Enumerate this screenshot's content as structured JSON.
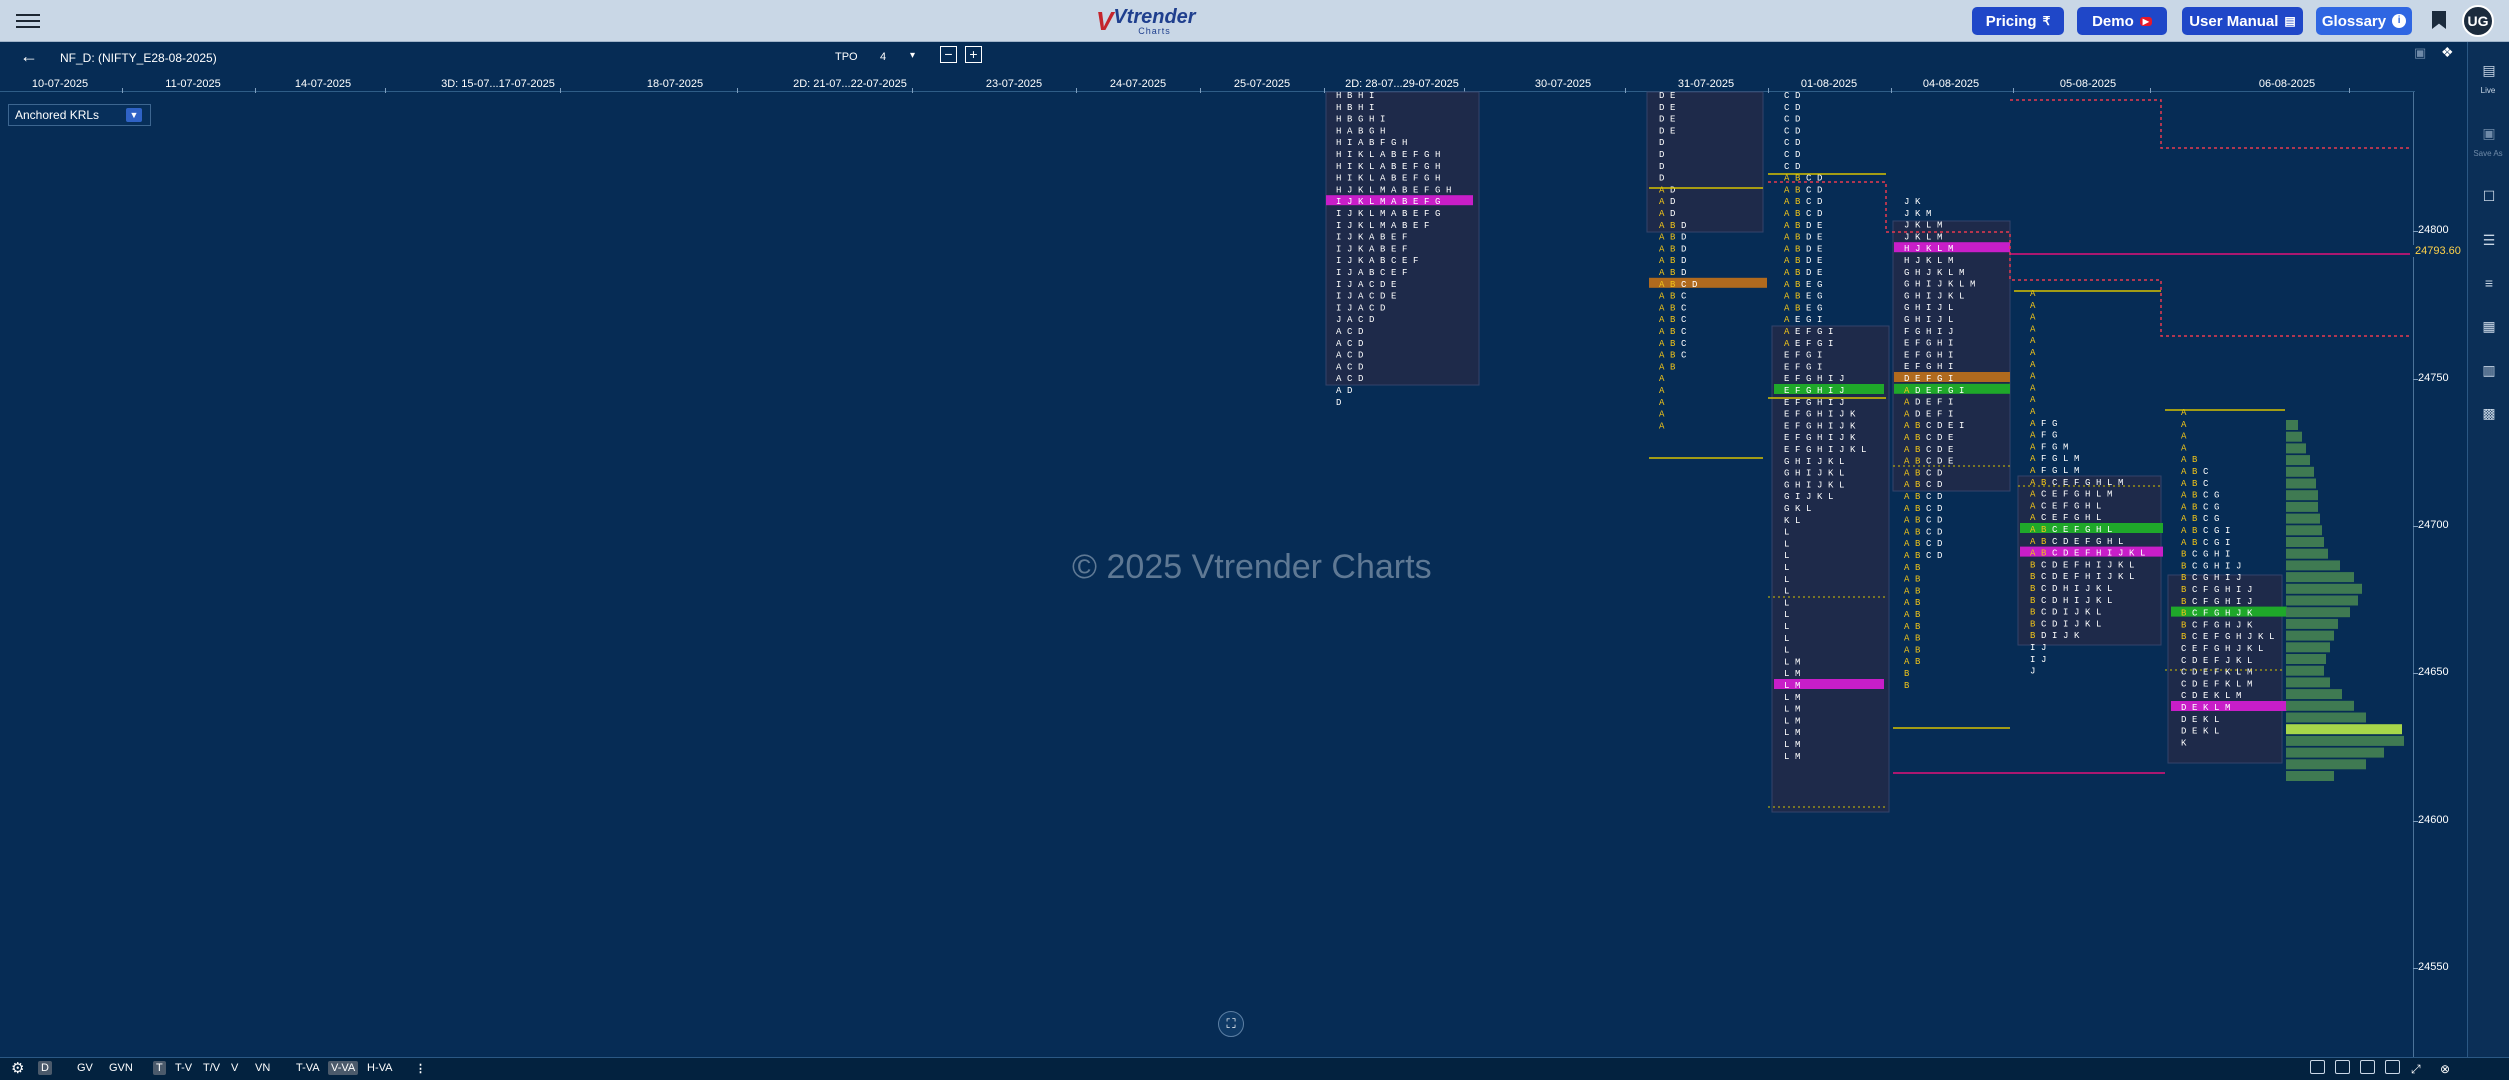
{
  "header": {
    "logo_mark": "V",
    "logo_word": "Vtrender",
    "logo_sub": "Charts",
    "buttons": [
      {
        "label": "Pricing",
        "icon": "₹"
      },
      {
        "label": "Demo",
        "icon": "▶"
      },
      {
        "label": "User Manual",
        "icon": "▤"
      },
      {
        "label": "Glossary",
        "icon": "i"
      }
    ],
    "avatar": "UG"
  },
  "toolbar": {
    "symbol": "NF_D: (NIFTY_E28-08-2025)",
    "tpo_label": "TPO",
    "tpo_value": "4",
    "minus": "−",
    "plus": "+"
  },
  "date_axis": [
    "10-07-2025",
    "11-07-2025",
    "14-07-2025",
    "3D: 15-07...17-07-2025",
    "18-07-2025",
    "2D: 21-07...22-07-2025",
    "23-07-2025",
    "24-07-2025",
    "25-07-2025",
    "2D: 28-07...29-07-2025",
    "30-07-2025",
    "31-07-2025",
    "01-08-2025",
    "04-08-2025",
    "05-08-2025",
    "06-08-2025"
  ],
  "anchored_krls": "Anchored KRLs",
  "watermark": "© 2025 Vtrender Charts",
  "price_axis": {
    "labels": [
      "24800",
      "24750",
      "24700",
      "24650",
      "24600",
      "24550"
    ],
    "last_price": "24793.60"
  },
  "right_sidebar": {
    "live": "Live",
    "save_as": "Save As"
  },
  "bottom_bar": [
    "D",
    "GV",
    "GVN",
    "T",
    "T-V",
    "T/V",
    "V",
    "VN",
    "T-VA",
    "V-VA",
    "H-VA"
  ],
  "colors": {
    "background": "#062c55",
    "profile_box": "#1e2a4a",
    "poc": "#c81ec8",
    "value_area_highlight": "#1fa82a",
    "initial_balance": "#b06a1e",
    "letters_ib": "#f0c419",
    "letters_other": "#ffffff",
    "value_line": "#d6c200",
    "vwap_line": "#e0127a",
    "volume_bars": "#3f7a52",
    "volume_poc": "#a7d64a"
  },
  "chart_data": {
    "type": "table",
    "title": "",
    "profiles": [
      {
        "date": "2D: 28-07...29-07-2025",
        "rows": [
          "HBHI",
          "HBHI",
          "HBGHI",
          "HABGH",
          "HIABFGH",
          "HIKLABEFGH",
          "HIKLABEFGH",
          "HIKLABEFGH",
          "HJKLMABEFGH",
          "IJKLMABEFG",
          "IJKLMABEFG",
          "IJKLMABEF",
          "IJKABEF",
          "IJKABEF",
          "IJKABCEF",
          "IJABCEF",
          "IJACDE",
          "IJACDE",
          "IJACD",
          "JACD",
          "ACD",
          "ACD",
          "ACD",
          "ACD",
          "ACD",
          "AD",
          "D"
        ],
        "poc_row": 9
      },
      {
        "date": "31-07-2025",
        "rows": [
          "DE",
          "DE",
          "DE",
          "DE",
          "D",
          "D",
          "D",
          "D",
          "AD",
          "AD",
          "AD",
          "ABD",
          "ABD",
          "ABD",
          "ABD",
          "ABD",
          "ABCD",
          "ABC",
          "ABC",
          "ABC",
          "ABC",
          "ABC",
          "ABC",
          "AB",
          "A",
          "A",
          "A",
          "A",
          "A"
        ],
        "ib_row": 16
      },
      {
        "date": "01-08-2025",
        "rows": [
          "CD",
          "CD",
          "CD",
          "CD",
          "CD",
          "CD",
          "CD",
          "ABCD",
          "ABCD",
          "ABCD",
          "ABCD",
          "ABDE",
          "ABDE",
          "ABDE",
          "ABDE",
          "ABDE",
          "ABEG",
          "ABEG",
          "ABEG",
          "AEGI",
          "AEFGI",
          "AEFGI",
          "EFGI",
          "EFGI",
          "EFGHIJ",
          "EFGHIJ",
          "EFGHIJ",
          "EFGHIJK",
          "EFGHIJK",
          "EFGHIJK",
          "EFGHIJKL",
          "GHIJKL",
          "GHIJKL",
          "GHIJKL",
          "GIJKL",
          "GKL",
          "KL",
          "L",
          "L",
          "L",
          "L",
          "L",
          "L",
          "L",
          "L",
          "L",
          "L",
          "L",
          "LM",
          "LM",
          "LM",
          "LM",
          "LM",
          "LM",
          "LM",
          "LM",
          "LM"
        ],
        "poc_row": 50,
        "va_row": 25
      },
      {
        "date": "04-08-2025",
        "rows": [
          "JK",
          "JKM",
          "JKLM",
          "JKLM",
          "HJKLM",
          "HJKLM",
          "GHJKLM",
          "GHIJKLM",
          "GHIJKL",
          "GHIJL",
          "GHIJL",
          "FGHIJ",
          "EFGHI",
          "EFGHI",
          "EFGHI",
          "DEFGI",
          "ADEFGI",
          "ADEFI",
          "ADEFI",
          "ABCDEI",
          "ABCDE",
          "ABCDE",
          "ABCDE",
          "ABCD",
          "ABCD",
          "ABCD",
          "ABCD",
          "ABCD",
          "ABCD",
          "ABCD",
          "ABCD",
          "AB",
          "AB",
          "AB",
          "AB",
          "AB",
          "AB",
          "AB",
          "AB",
          "AB",
          "B",
          "B"
        ],
        "poc_row": 4,
        "ib_row": 15,
        "va_row": 16
      },
      {
        "date": "05-08-2025",
        "rows": [
          "A",
          "A",
          "A",
          "A",
          "A",
          "A",
          "A",
          "A",
          "A",
          "A",
          "A",
          "AFG",
          "AFG",
          "AFGM",
          "AFGLM",
          "AFGLM",
          "ABCEFGHLM",
          "ACEFGHLM",
          "ACEFGHL",
          "ACEFGHL",
          "ABCEFGHL",
          "ABCDEFGHL",
          "ABCDEFHIJKL",
          "BCDEFHIJKL",
          "BCDEFHIJKL",
          "BCDHIJKL",
          "BCDHIJKL",
          "BCDIJKL",
          "BCDIJKL",
          "BDIJK",
          "IJ",
          "IJ",
          "J"
        ],
        "poc_row": 22,
        "va_row": 20
      },
      {
        "date": "06-08-2025",
        "rows": [
          "A",
          "A",
          "A",
          "A",
          "AB",
          "ABC",
          "ABC",
          "ABCG",
          "ABCG",
          "ABCG",
          "ABCGI",
          "ABCGI",
          "BCGHI",
          "BCGHIJ",
          "BCGHIJ",
          "BCFGHIJ",
          "BCFGHIJ",
          "BCFGHJK",
          "BCFGHJK",
          "BCEFGHJKL",
          "CEFGHJKL",
          "CDEFJKL",
          "CDEFKLM",
          "CDEFKLM",
          "CDEKLM",
          "DEKLM",
          "DEKL",
          "DEKL",
          "K"
        ],
        "poc_row": 25,
        "va_row": 17
      }
    ],
    "volume_profile_bars": 31
  }
}
